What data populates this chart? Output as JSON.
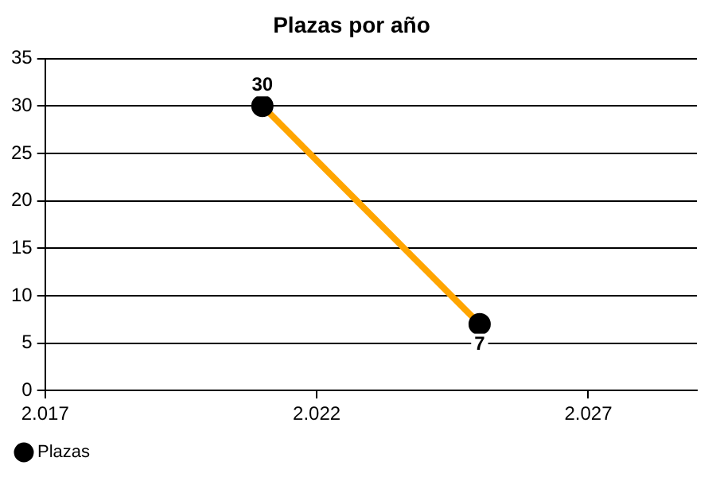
{
  "chart_data": {
    "type": "line",
    "title": "Plazas por año",
    "x": [
      2021,
      2025
    ],
    "series": [
      {
        "name": "Plazas",
        "color": "#ffa500",
        "values": [
          30,
          7
        ]
      }
    ],
    "xlim": [
      2017,
      2029
    ],
    "xticks": [
      {
        "value": 2017,
        "label": "2.017"
      },
      {
        "value": 2022,
        "label": "2.022"
      },
      {
        "value": 2027,
        "label": "2.027"
      }
    ],
    "ylim": [
      0,
      35
    ],
    "yticks": [
      0,
      5,
      10,
      15,
      20,
      25,
      30,
      35
    ],
    "grid": "y",
    "legend": "bottom left",
    "marker": "circle",
    "line_style": "solid",
    "data_labels": true
  }
}
